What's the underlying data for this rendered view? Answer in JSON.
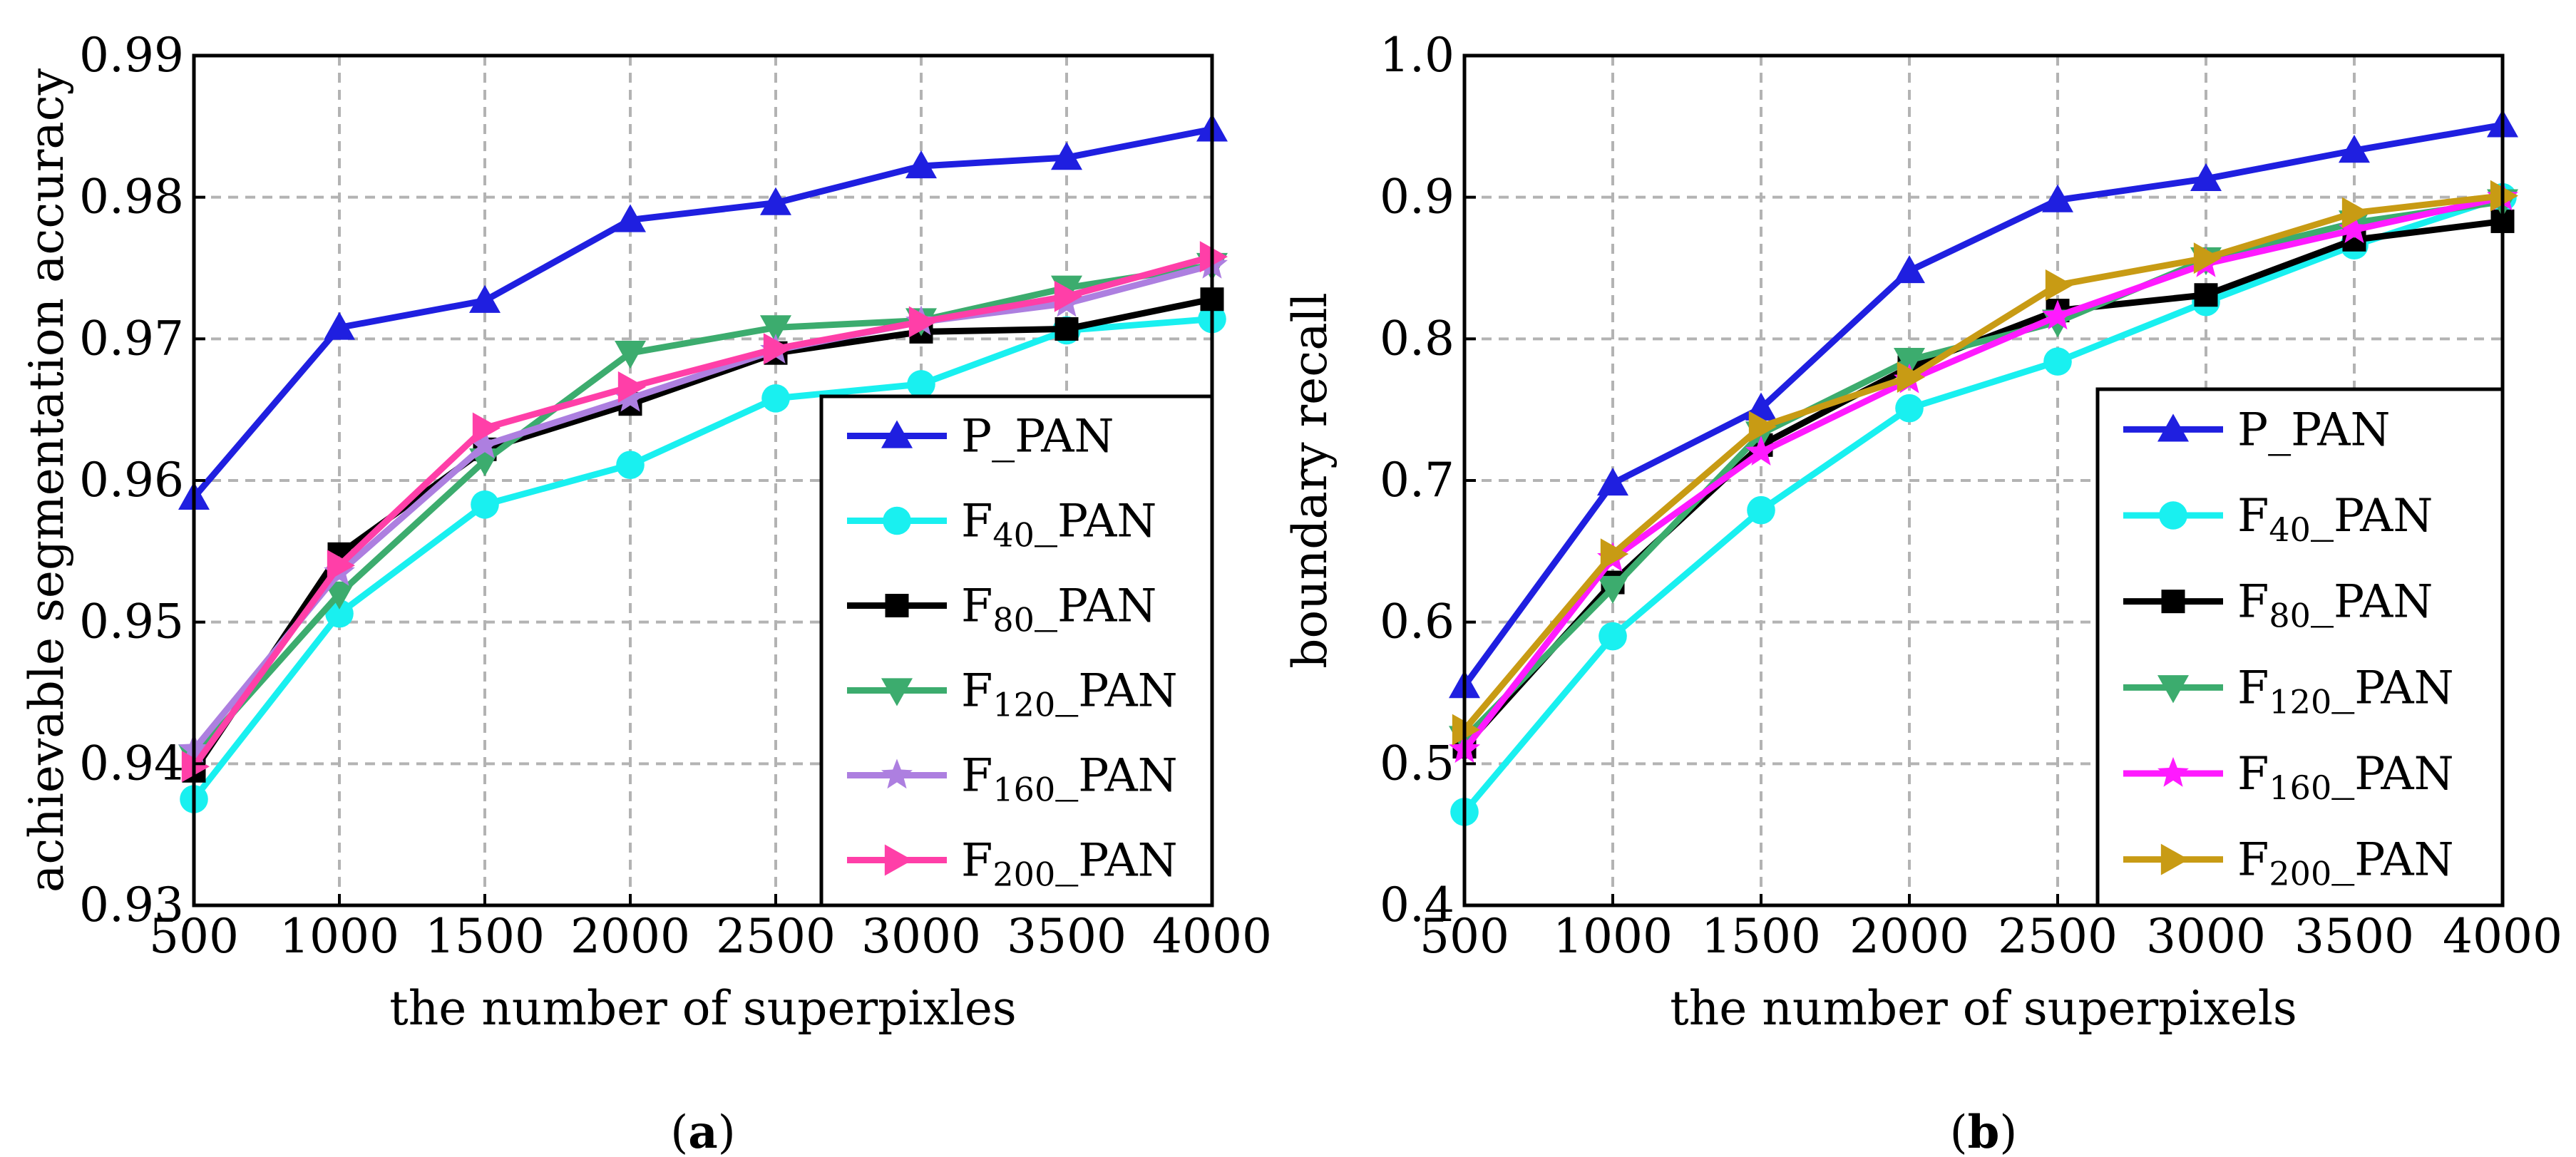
{
  "chart_data": [
    {
      "type": "line",
      "panel_label": "a",
      "xlabel": "the number of superpixles",
      "ylabel": "achievable segmentation accuracy",
      "x": [
        500,
        1000,
        1500,
        2000,
        2500,
        3000,
        3500,
        4000
      ],
      "xlim": [
        500,
        4000
      ],
      "ylim": [
        0.93,
        0.99
      ],
      "xticks": [
        "500",
        "1000",
        "1500",
        "2000",
        "2500",
        "3000",
        "3500",
        "4000"
      ],
      "yticks": [
        "0.93",
        "0.94",
        "0.95",
        "0.96",
        "0.97",
        "0.98",
        "0.99"
      ],
      "grid": true,
      "legend_position": "bottom-right",
      "series": [
        {
          "name": "P_PAN",
          "label_main": "P_PAN",
          "label_sub": "",
          "label_tail": "",
          "color": "#1f1fe0",
          "marker": "triangle-up",
          "values": [
            0.9588,
            0.9708,
            0.9727,
            0.9784,
            0.9796,
            0.9822,
            0.9828,
            0.9848
          ]
        },
        {
          "name": "F40_PAN",
          "label_main": "F",
          "label_sub": "40",
          "label_tail": "_PAN",
          "color": "#19f0f0",
          "marker": "circle",
          "values": [
            0.9375,
            0.9506,
            0.9583,
            0.9611,
            0.9658,
            0.9668,
            0.9706,
            0.9714
          ]
        },
        {
          "name": "F80_PAN",
          "label_main": "F",
          "label_sub": "80",
          "label_tail": "_PAN",
          "color": "#000000",
          "marker": "square",
          "values": [
            0.9395,
            0.9548,
            0.9622,
            0.9654,
            0.969,
            0.9705,
            0.9707,
            0.9728
          ]
        },
        {
          "name": "F120_PAN",
          "label_main": "F",
          "label_sub": "120",
          "label_tail": "_PAN",
          "color": "#3cac6e",
          "marker": "triangle-down",
          "values": [
            0.9405,
            0.952,
            0.9614,
            0.969,
            0.9708,
            0.9713,
            0.9736,
            0.9752
          ]
        },
        {
          "name": "F160_PAN",
          "label_main": "F",
          "label_sub": "160",
          "label_tail": "_PAN",
          "color": "#ad7fe0",
          "marker": "star",
          "values": [
            0.941,
            0.9535,
            0.9625,
            0.9658,
            0.9692,
            0.9712,
            0.9725,
            0.9752
          ]
        },
        {
          "name": "F200_PAN",
          "label_main": "F",
          "label_sub": "200",
          "label_tail": "_PAN",
          "color": "#ff3fa8",
          "marker": "triangle-right",
          "values": [
            0.9398,
            0.954,
            0.9637,
            0.9666,
            0.9693,
            0.9712,
            0.973,
            0.9758
          ]
        }
      ]
    },
    {
      "type": "line",
      "panel_label": "b",
      "xlabel": "the number of superpixels",
      "ylabel": "boundary recall",
      "x": [
        500,
        1000,
        1500,
        2000,
        2500,
        3000,
        3500,
        4000
      ],
      "xlim": [
        500,
        4000
      ],
      "ylim": [
        0.4,
        1.0
      ],
      "xticks": [
        "500",
        "1000",
        "1500",
        "2000",
        "2500",
        "3000",
        "3500",
        "4000"
      ],
      "yticks": [
        "0.4",
        "0.5",
        "0.6",
        "0.7",
        "0.8",
        "0.9",
        "1.0"
      ],
      "grid": true,
      "legend_position": "bottom-right",
      "series": [
        {
          "name": "P_PAN",
          "label_main": "P_PAN",
          "label_sub": "",
          "label_tail": "",
          "color": "#1f1fe0",
          "marker": "triangle-up",
          "values": [
            0.555,
            0.698,
            0.751,
            0.848,
            0.898,
            0.913,
            0.933,
            0.951
          ]
        },
        {
          "name": "F40_PAN",
          "label_main": "F",
          "label_sub": "40",
          "label_tail": "_PAN",
          "color": "#19f0f0",
          "marker": "circle",
          "values": [
            0.466,
            0.59,
            0.679,
            0.751,
            0.784,
            0.826,
            0.866,
            0.9
          ]
        },
        {
          "name": "F80_PAN",
          "label_main": "F",
          "label_sub": "80",
          "label_tail": "_PAN",
          "color": "#000000",
          "marker": "square",
          "values": [
            0.512,
            0.628,
            0.725,
            0.78,
            0.82,
            0.831,
            0.87,
            0.883
          ]
        },
        {
          "name": "F120_PAN",
          "label_main": "F",
          "label_sub": "120",
          "label_tail": "_PAN",
          "color": "#3cac6e",
          "marker": "triangle-down",
          "values": [
            0.518,
            0.624,
            0.733,
            0.785,
            0.812,
            0.856,
            0.882,
            0.897
          ]
        },
        {
          "name": "F160_PAN",
          "label_main": "F",
          "label_sub": "160",
          "label_tail": "_PAN",
          "color": "#ff1aff",
          "marker": "star",
          "values": [
            0.51,
            0.645,
            0.72,
            0.771,
            0.816,
            0.853,
            0.877,
            0.9
          ]
        },
        {
          "name": "F200_PAN",
          "label_main": "F",
          "label_sub": "200",
          "label_tail": "_PAN",
          "color": "#c89b14",
          "marker": "triangle-right",
          "values": [
            0.524,
            0.648,
            0.738,
            0.773,
            0.838,
            0.857,
            0.889,
            0.901
          ]
        }
      ]
    }
  ]
}
